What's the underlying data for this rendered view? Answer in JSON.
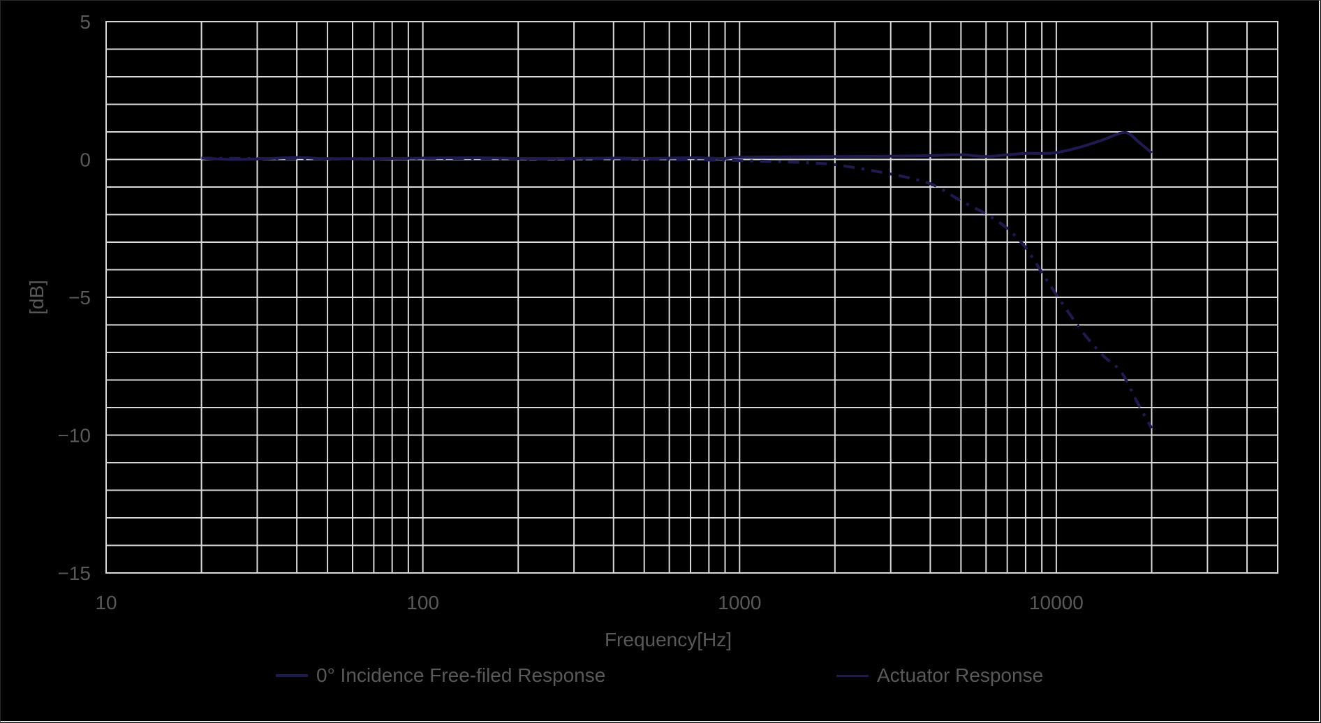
{
  "chart_data": {
    "type": "line",
    "title": "",
    "xlabel": "Frequency[Hz]",
    "ylabel": "[dB]",
    "xscale": "log",
    "xlim": [
      10,
      50000
    ],
    "ylim": [
      -15,
      5
    ],
    "x_ticks": [
      10,
      100,
      1000,
      10000
    ],
    "x_tick_labels": [
      "10",
      "100",
      "1000",
      "10000"
    ],
    "y_ticks": [
      5,
      0,
      -5,
      -10,
      -15
    ],
    "y_tick_labels": [
      "5",
      "0",
      "-5",
      "-10",
      "-15"
    ],
    "grid": {
      "major_x": true,
      "minor_x": true,
      "y_step": 1
    },
    "legend_position": "bottom",
    "colors": {
      "background": "#000000",
      "grid": "#d9d9d9",
      "text": "#595959",
      "series": "#1f1a4f"
    },
    "series": [
      {
        "name": "0° Incidence Free-filed Response",
        "style": "solid",
        "x": [
          20,
          25,
          30,
          40,
          50,
          70,
          100,
          150,
          200,
          300,
          400,
          500,
          600,
          700,
          800,
          900,
          1000,
          1500,
          2000,
          3000,
          4000,
          5000,
          6000,
          7000,
          8000,
          9000,
          10000,
          12000,
          14000,
          16000,
          17000,
          18000,
          20000
        ],
        "y": [
          0.05,
          0.0,
          0.02,
          0.07,
          0.03,
          0.03,
          0.05,
          0.06,
          0.04,
          0.04,
          0.05,
          0.04,
          0.05,
          0.06,
          0.05,
          0.04,
          0.08,
          0.1,
          0.11,
          0.12,
          0.14,
          0.17,
          0.11,
          0.17,
          0.22,
          0.22,
          0.25,
          0.46,
          0.71,
          0.96,
          0.93,
          0.68,
          0.24
        ]
      },
      {
        "name": "Actuator Response",
        "style": "dash-dot",
        "x": [
          20,
          50,
          100,
          200,
          400,
          600,
          800,
          1000,
          1500,
          2000,
          3000,
          4000,
          5000,
          6000,
          7000,
          8000,
          9000,
          10000,
          12000,
          14000,
          16000,
          18000,
          20000
        ],
        "y": [
          0.05,
          0.03,
          0.04,
          0.03,
          0.02,
          0.0,
          -0.02,
          -0.04,
          -0.1,
          -0.19,
          -0.53,
          -0.88,
          -1.5,
          -1.98,
          -2.5,
          -3.2,
          -4.1,
          -4.9,
          -6.2,
          -7.1,
          -7.7,
          -8.8,
          -9.75
        ]
      }
    ]
  },
  "axes": {
    "x_title": "Frequency[Hz]",
    "y_title": "[dB]"
  },
  "legend": {
    "items": [
      {
        "label": "0° Incidence Free-filed Response",
        "style": "solid"
      },
      {
        "label": "Actuator Response",
        "style": "dash-dot"
      }
    ]
  }
}
